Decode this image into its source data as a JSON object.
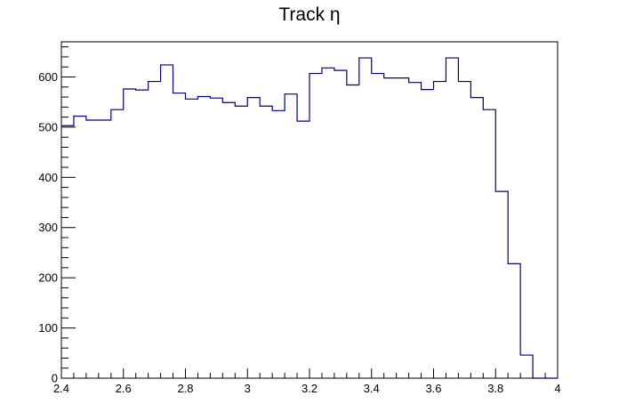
{
  "chart_data": {
    "type": "bar",
    "style": "step-histogram",
    "title": "Track  η",
    "xlabel": "",
    "ylabel": "",
    "xlim": [
      2.4,
      4.0
    ],
    "ylim": [
      0,
      670
    ],
    "x_ticks": [
      2.4,
      2.6,
      2.8,
      3.0,
      3.2,
      3.4,
      3.6,
      3.8,
      4.0
    ],
    "x_tick_labels": [
      "2.4",
      "2.6",
      "2.8",
      "3",
      "3.2",
      "3.4",
      "3.6",
      "3.8",
      "4"
    ],
    "y_ticks": [
      0,
      100,
      200,
      300,
      400,
      500,
      600
    ],
    "y_tick_labels": [
      "0",
      "100",
      "200",
      "300",
      "400",
      "500",
      "600"
    ],
    "bin_edges": [
      2.4,
      2.44,
      2.48,
      2.52,
      2.56,
      2.6,
      2.64,
      2.68,
      2.72,
      2.76,
      2.8,
      2.84,
      2.88,
      2.92,
      2.96,
      3.0,
      3.04,
      3.08,
      3.12,
      3.16,
      3.2,
      3.24,
      3.28,
      3.32,
      3.36,
      3.4,
      3.44,
      3.48,
      3.52,
      3.56,
      3.6,
      3.64,
      3.68,
      3.72,
      3.76,
      3.8,
      3.84,
      3.88,
      3.92,
      3.96,
      4.0
    ],
    "values": [
      503,
      522,
      514,
      514,
      535,
      576,
      574,
      591,
      624,
      568,
      556,
      561,
      558,
      549,
      542,
      559,
      542,
      533,
      566,
      512,
      607,
      618,
      613,
      584,
      638,
      607,
      598,
      598,
      589,
      575,
      591,
      638,
      591,
      559,
      535,
      372,
      228,
      46,
      0,
      0
    ],
    "grid": false,
    "legend": "none",
    "line_color": "#000080"
  }
}
